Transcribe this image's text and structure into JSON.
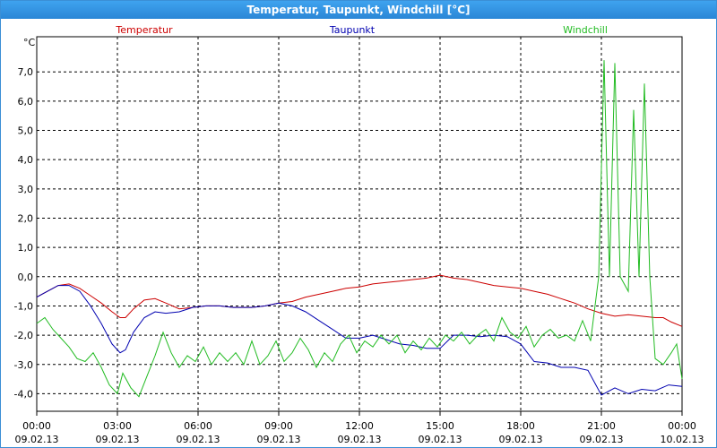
{
  "window": {
    "title": "Temperatur, Taupunkt, Windchill [°C]"
  },
  "chart_data": {
    "type": "line",
    "title": "Temperatur, Taupunkt, Windchill [°C]",
    "ylabel": "°C",
    "ylim": [
      -4.6,
      8.2
    ],
    "yticks": [
      "7,0",
      "6,0",
      "5,0",
      "4,0",
      "3,0",
      "2,0",
      "1,0",
      "0,0",
      "-1,0",
      "-2,0",
      "-3,0",
      "-4,0"
    ],
    "ytick_values": [
      7,
      6,
      5,
      4,
      3,
      2,
      1,
      0,
      -1,
      -2,
      -3,
      -4
    ],
    "xlim": [
      0,
      24
    ],
    "xticks": [
      {
        "x": 0,
        "time": "00:00",
        "date": "09.02.13"
      },
      {
        "x": 3,
        "time": "03:00",
        "date": "09.02.13"
      },
      {
        "x": 6,
        "time": "06:00",
        "date": "09.02.13"
      },
      {
        "x": 9,
        "time": "09:00",
        "date": "09.02.13"
      },
      {
        "x": 12,
        "time": "12:00",
        "date": "09.02.13"
      },
      {
        "x": 15,
        "time": "15:00",
        "date": "09.02.13"
      },
      {
        "x": 18,
        "time": "18:00",
        "date": "09.02.13"
      },
      {
        "x": 21,
        "time": "21:00",
        "date": "09.02.13"
      },
      {
        "x": 24,
        "time": "00:00",
        "date": "10.02.13"
      }
    ],
    "grid": true,
    "legend": "top",
    "series": [
      {
        "name": "Temperatur",
        "color": "#cc0000",
        "points": [
          [
            0,
            -0.7
          ],
          [
            0.4,
            -0.5
          ],
          [
            0.8,
            -0.3
          ],
          [
            1.2,
            -0.25
          ],
          [
            1.6,
            -0.4
          ],
          [
            2,
            -0.65
          ],
          [
            2.4,
            -0.9
          ],
          [
            2.8,
            -1.2
          ],
          [
            3.1,
            -1.4
          ],
          [
            3.3,
            -1.4
          ],
          [
            3.6,
            -1.1
          ],
          [
            4,
            -0.8
          ],
          [
            4.4,
            -0.75
          ],
          [
            4.8,
            -0.9
          ],
          [
            5.3,
            -1.1
          ],
          [
            5.8,
            -1.05
          ],
          [
            6.3,
            -1.0
          ],
          [
            6.8,
            -1.0
          ],
          [
            7.3,
            -1.05
          ],
          [
            8,
            -1.05
          ],
          [
            8.5,
            -1.0
          ],
          [
            9,
            -0.9
          ],
          [
            9.5,
            -0.85
          ],
          [
            10,
            -0.7
          ],
          [
            10.5,
            -0.6
          ],
          [
            11,
            -0.5
          ],
          [
            11.5,
            -0.4
          ],
          [
            12,
            -0.35
          ],
          [
            12.5,
            -0.25
          ],
          [
            13,
            -0.2
          ],
          [
            13.5,
            -0.15
          ],
          [
            14,
            -0.1
          ],
          [
            14.5,
            -0.05
          ],
          [
            15,
            0.05
          ],
          [
            15.5,
            -0.05
          ],
          [
            16,
            -0.1
          ],
          [
            16.5,
            -0.2
          ],
          [
            17,
            -0.3
          ],
          [
            17.5,
            -0.35
          ],
          [
            18,
            -0.4
          ],
          [
            18.5,
            -0.5
          ],
          [
            19,
            -0.6
          ],
          [
            19.5,
            -0.75
          ],
          [
            20,
            -0.9
          ],
          [
            20.5,
            -1.1
          ],
          [
            21,
            -1.25
          ],
          [
            21.5,
            -1.35
          ],
          [
            22,
            -1.3
          ],
          [
            22.5,
            -1.35
          ],
          [
            23,
            -1.4
          ],
          [
            23.3,
            -1.4
          ],
          [
            23.6,
            -1.55
          ],
          [
            24,
            -1.7
          ]
        ]
      },
      {
        "name": "Taupunkt",
        "color": "#0000b0",
        "points": [
          [
            0,
            -0.7
          ],
          [
            0.4,
            -0.5
          ],
          [
            0.8,
            -0.3
          ],
          [
            1.2,
            -0.3
          ],
          [
            1.6,
            -0.5
          ],
          [
            2,
            -1.0
          ],
          [
            2.4,
            -1.6
          ],
          [
            2.8,
            -2.3
          ],
          [
            3.1,
            -2.6
          ],
          [
            3.3,
            -2.5
          ],
          [
            3.6,
            -1.9
          ],
          [
            4,
            -1.4
          ],
          [
            4.4,
            -1.2
          ],
          [
            4.8,
            -1.25
          ],
          [
            5.3,
            -1.2
          ],
          [
            5.8,
            -1.05
          ],
          [
            6.3,
            -1.0
          ],
          [
            6.8,
            -1.0
          ],
          [
            7.3,
            -1.05
          ],
          [
            8,
            -1.05
          ],
          [
            8.5,
            -1.0
          ],
          [
            9,
            -0.9
          ],
          [
            9.5,
            -1.0
          ],
          [
            10,
            -1.2
          ],
          [
            10.5,
            -1.5
          ],
          [
            11,
            -1.8
          ],
          [
            11.5,
            -2.1
          ],
          [
            12,
            -2.1
          ],
          [
            12.5,
            -2.0
          ],
          [
            13,
            -2.15
          ],
          [
            13.5,
            -2.3
          ],
          [
            14,
            -2.35
          ],
          [
            14.5,
            -2.45
          ],
          [
            15,
            -2.45
          ],
          [
            15.5,
            -2.0
          ],
          [
            16,
            -2.0
          ],
          [
            16.5,
            -2.05
          ],
          [
            17,
            -2.0
          ],
          [
            17.5,
            -2.05
          ],
          [
            18,
            -2.3
          ],
          [
            18.5,
            -2.9
          ],
          [
            19,
            -2.95
          ],
          [
            19.5,
            -3.1
          ],
          [
            20,
            -3.1
          ],
          [
            20.5,
            -3.2
          ],
          [
            21,
            -4.05
          ],
          [
            21.5,
            -3.8
          ],
          [
            22,
            -4.0
          ],
          [
            22.5,
            -3.85
          ],
          [
            23,
            -3.9
          ],
          [
            23.5,
            -3.7
          ],
          [
            24,
            -3.75
          ]
        ]
      },
      {
        "name": "Windchill",
        "color": "#22bb22",
        "points": [
          [
            0,
            -1.6
          ],
          [
            0.3,
            -1.4
          ],
          [
            0.6,
            -1.8
          ],
          [
            0.9,
            -2.1
          ],
          [
            1.2,
            -2.4
          ],
          [
            1.5,
            -2.8
          ],
          [
            1.8,
            -2.9
          ],
          [
            2.1,
            -2.6
          ],
          [
            2.4,
            -3.1
          ],
          [
            2.7,
            -3.7
          ],
          [
            3,
            -4.0
          ],
          [
            3.2,
            -3.3
          ],
          [
            3.5,
            -3.8
          ],
          [
            3.8,
            -4.1
          ],
          [
            4.1,
            -3.4
          ],
          [
            4.4,
            -2.7
          ],
          [
            4.7,
            -1.9
          ],
          [
            5,
            -2.6
          ],
          [
            5.3,
            -3.1
          ],
          [
            5.6,
            -2.7
          ],
          [
            5.9,
            -2.9
          ],
          [
            6.2,
            -2.4
          ],
          [
            6.5,
            -3.0
          ],
          [
            6.8,
            -2.6
          ],
          [
            7.1,
            -2.9
          ],
          [
            7.4,
            -2.6
          ],
          [
            7.7,
            -3.0
          ],
          [
            8,
            -2.2
          ],
          [
            8.3,
            -3.0
          ],
          [
            8.6,
            -2.7
          ],
          [
            8.9,
            -2.2
          ],
          [
            9.2,
            -2.9
          ],
          [
            9.5,
            -2.6
          ],
          [
            9.8,
            -2.1
          ],
          [
            10.1,
            -2.5
          ],
          [
            10.4,
            -3.1
          ],
          [
            10.7,
            -2.6
          ],
          [
            11,
            -2.9
          ],
          [
            11.3,
            -2.3
          ],
          [
            11.6,
            -2.0
          ],
          [
            11.9,
            -2.6
          ],
          [
            12.2,
            -2.2
          ],
          [
            12.5,
            -2.4
          ],
          [
            12.8,
            -2.0
          ],
          [
            13.1,
            -2.3
          ],
          [
            13.4,
            -2.0
          ],
          [
            13.7,
            -2.6
          ],
          [
            14,
            -2.2
          ],
          [
            14.3,
            -2.5
          ],
          [
            14.6,
            -2.1
          ],
          [
            14.9,
            -2.4
          ],
          [
            15.2,
            -2.0
          ],
          [
            15.5,
            -2.2
          ],
          [
            15.8,
            -1.9
          ],
          [
            16.1,
            -2.3
          ],
          [
            16.4,
            -2.0
          ],
          [
            16.7,
            -1.8
          ],
          [
            17,
            -2.2
          ],
          [
            17.3,
            -1.4
          ],
          [
            17.6,
            -1.9
          ],
          [
            17.9,
            -2.1
          ],
          [
            18.2,
            -1.7
          ],
          [
            18.5,
            -2.4
          ],
          [
            18.8,
            -2.0
          ],
          [
            19.1,
            -1.8
          ],
          [
            19.4,
            -2.1
          ],
          [
            19.7,
            -2.0
          ],
          [
            20,
            -2.2
          ],
          [
            20.3,
            -1.5
          ],
          [
            20.6,
            -2.2
          ],
          [
            20.9,
            0.0
          ],
          [
            21.1,
            7.4
          ],
          [
            21.3,
            0.0
          ],
          [
            21.5,
            7.3
          ],
          [
            21.7,
            0.0
          ],
          [
            22,
            -0.5
          ],
          [
            22.2,
            5.7
          ],
          [
            22.4,
            0.0
          ],
          [
            22.6,
            6.6
          ],
          [
            22.8,
            0.0
          ],
          [
            23,
            -2.8
          ],
          [
            23.3,
            -3.0
          ],
          [
            23.6,
            -2.6
          ],
          [
            23.8,
            -2.3
          ],
          [
            24,
            -3.5
          ]
        ]
      }
    ]
  }
}
